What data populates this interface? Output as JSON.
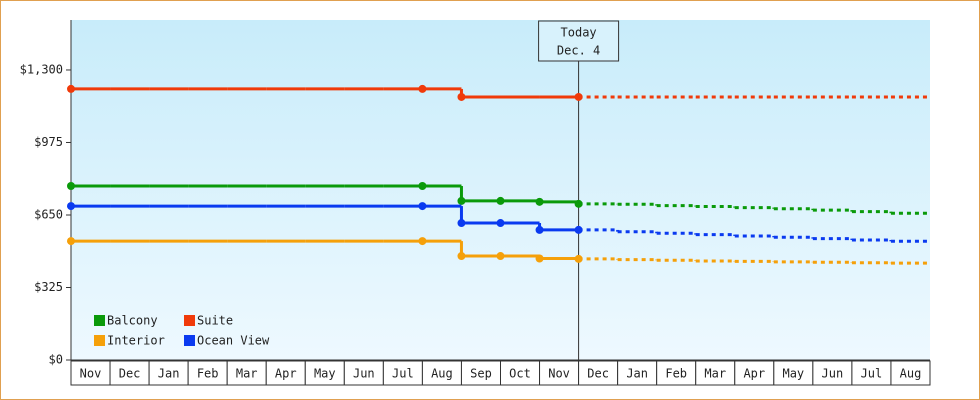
{
  "chart_data": {
    "type": "step-line",
    "categories": [
      "Nov",
      "Dec",
      "Jan",
      "Feb",
      "Mar",
      "Apr",
      "May",
      "Jun",
      "Jul",
      "Aug",
      "Sep",
      "Oct",
      "Nov",
      "Dec",
      "Jan",
      "Feb",
      "Mar",
      "Apr",
      "May",
      "Jun",
      "Jul",
      "Aug"
    ],
    "ylim": [
      0,
      1524
    ],
    "yticks": [
      {
        "value": 0,
        "label": "$0"
      },
      {
        "value": 325,
        "label": "$325"
      },
      {
        "value": 650,
        "label": "$650"
      },
      {
        "value": 975,
        "label": "$975"
      },
      {
        "value": 1300,
        "label": "$1,300"
      }
    ],
    "annotation": {
      "title": "Today",
      "date": "Dec. 4",
      "index": 13
    },
    "series": [
      {
        "name": "Balcony",
        "color": "#0a9a0a",
        "values": [
          780,
          780,
          780,
          780,
          780,
          780,
          780,
          780,
          780,
          780,
          713,
          713,
          709,
          700,
          null,
          null,
          null,
          null,
          null,
          null,
          null,
          null
        ],
        "forecast_values": [
          null,
          null,
          null,
          null,
          null,
          null,
          null,
          null,
          null,
          null,
          null,
          null,
          null,
          700,
          698,
          692,
          688,
          683,
          678,
          672,
          665,
          658
        ]
      },
      {
        "name": "Suite",
        "color": "#f03a0a",
        "values": [
          1215,
          1215,
          1215,
          1215,
          1215,
          1215,
          1215,
          1215,
          1215,
          1215,
          1179,
          1179,
          1179,
          1179,
          null,
          null,
          null,
          null,
          null,
          null,
          null,
          null
        ],
        "forecast_values": [
          null,
          null,
          null,
          null,
          null,
          null,
          null,
          null,
          null,
          null,
          null,
          null,
          null,
          1179,
          1179,
          1179,
          1179,
          1179,
          1179,
          1179,
          1179,
          1179
        ]
      },
      {
        "name": "Interior",
        "color": "#f5a00a",
        "values": [
          533,
          533,
          533,
          533,
          533,
          533,
          533,
          533,
          533,
          533,
          466,
          466,
          455,
          453,
          null,
          null,
          null,
          null,
          null,
          null,
          null,
          null
        ],
        "forecast_values": [
          null,
          null,
          null,
          null,
          null,
          null,
          null,
          null,
          null,
          null,
          null,
          null,
          null,
          453,
          450,
          447,
          444,
          442,
          440,
          438,
          436,
          434
        ]
      },
      {
        "name": "Ocean View",
        "color": "#0a3af0",
        "values": [
          690,
          690,
          690,
          690,
          690,
          690,
          690,
          690,
          690,
          690,
          614,
          614,
          583,
          583,
          null,
          null,
          null,
          null,
          null,
          null,
          null,
          null
        ],
        "forecast_values": [
          null,
          null,
          null,
          null,
          null,
          null,
          null,
          null,
          null,
          null,
          null,
          null,
          null,
          583,
          575,
          568,
          562,
          556,
          550,
          544,
          538,
          532
        ]
      }
    ]
  }
}
